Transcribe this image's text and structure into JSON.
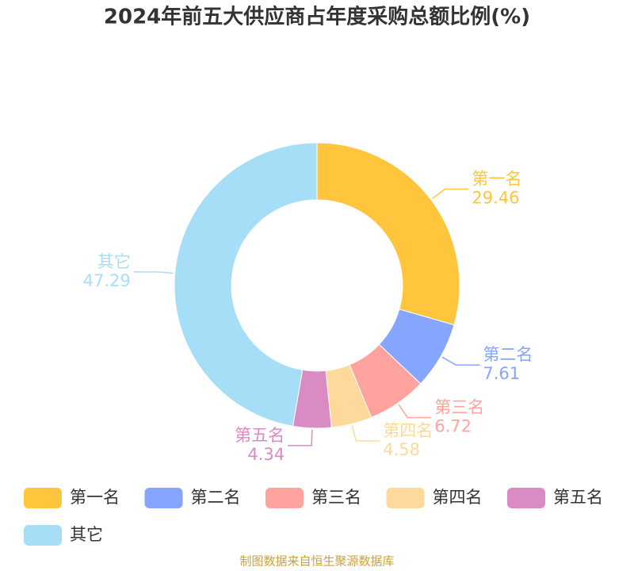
{
  "chart_data": {
    "type": "donut",
    "title": "2024年前五大供应商占年度采购总额比例(%)",
    "categories": [
      "第一名",
      "第二名",
      "第三名",
      "第四名",
      "第五名",
      "其它"
    ],
    "values": [
      29.46,
      7.61,
      6.72,
      4.58,
      4.34,
      47.29
    ],
    "colors": [
      "#ffc53d",
      "#85a5ff",
      "#ffa39e",
      "#ffd99c",
      "#da8bc3",
      "#a6def8"
    ],
    "source": "制图数据来自恒生聚源数据库"
  }
}
